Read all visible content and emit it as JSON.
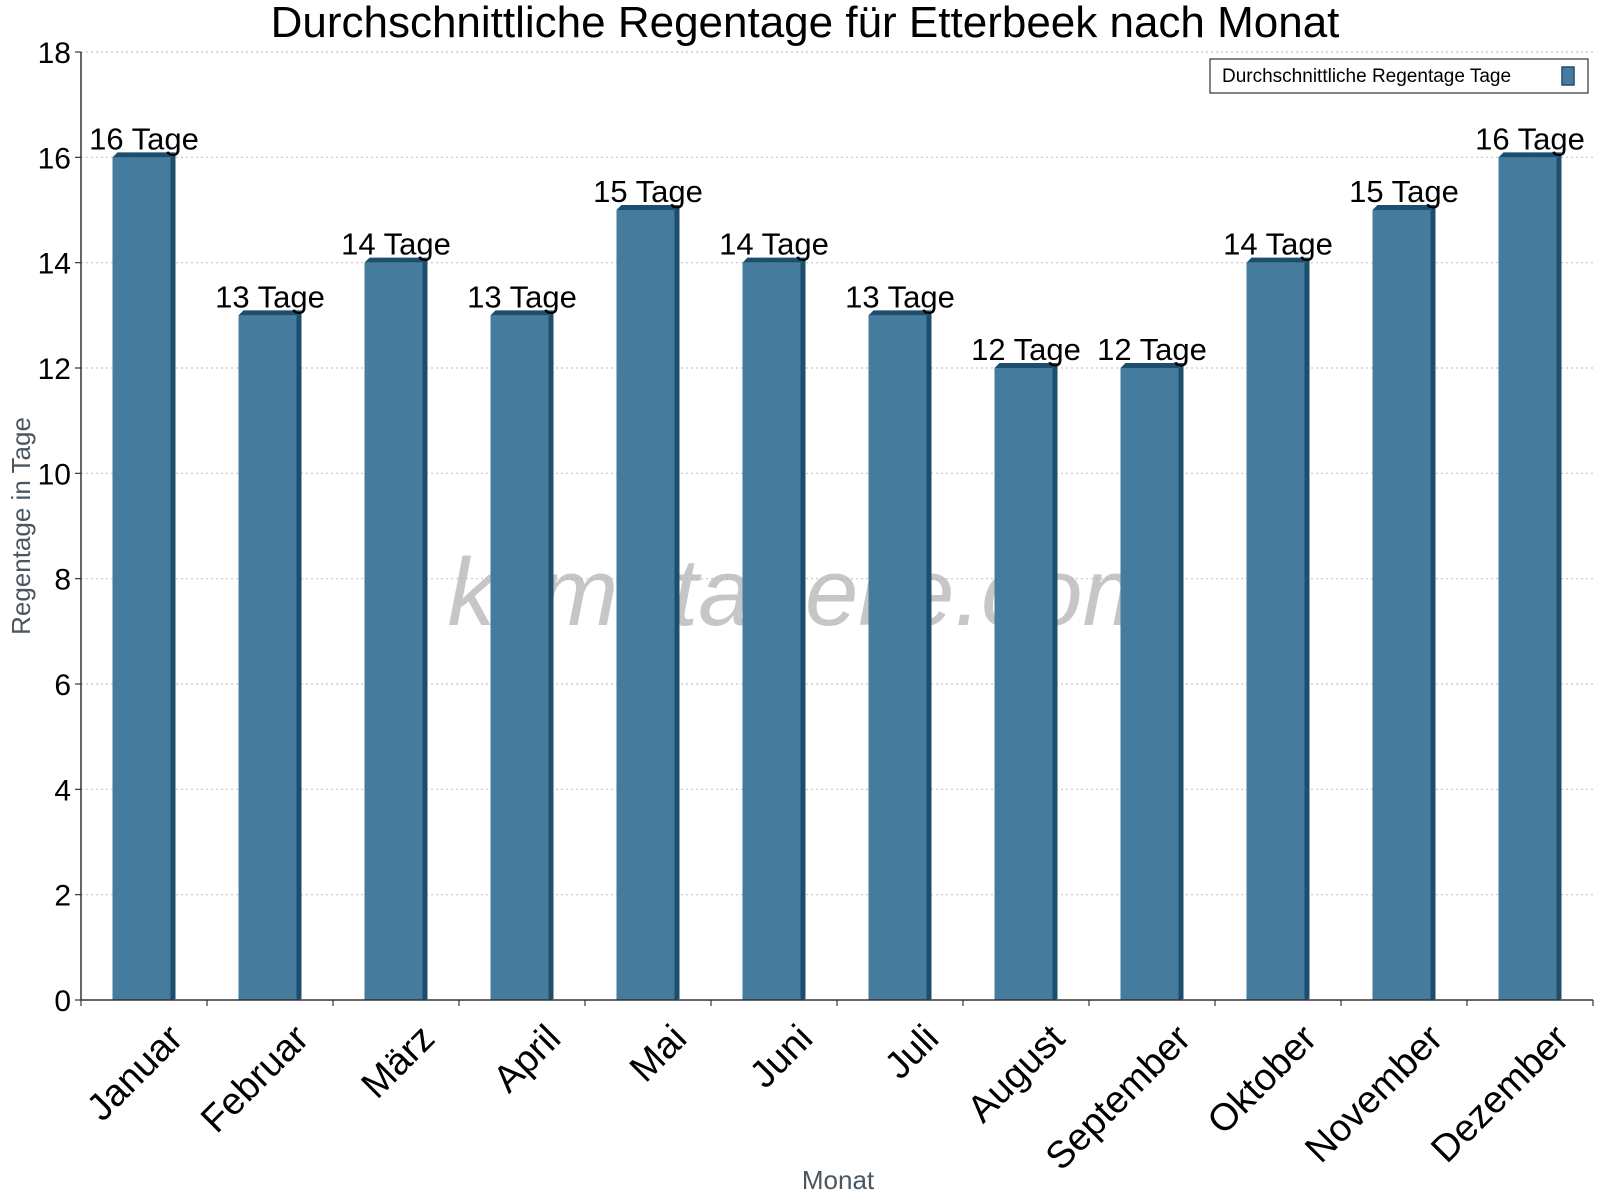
{
  "chart_data": {
    "type": "bar",
    "title": "Durchschnittliche Regentage für Etterbeek nach Monat",
    "xlabel": "Monat",
    "ylabel": "Regentage in Tage",
    "ylim": [
      0,
      18
    ],
    "yticks": [
      "0",
      "2",
      "4",
      "6",
      "8",
      "10",
      "12",
      "14",
      "16",
      "18"
    ],
    "grid": true,
    "legend_position": "top-right",
    "categories": [
      "Januar",
      "Februar",
      "März",
      "April",
      "Mai",
      "Juni",
      "Juli",
      "August",
      "September",
      "Oktober",
      "November",
      "Dezember"
    ],
    "series": [
      {
        "name": "Durchschnittliche Regentage Tage",
        "values": [
          16,
          13,
          14,
          13,
          15,
          14,
          13,
          12,
          12,
          14,
          15,
          16
        ],
        "labels": [
          "16 Tage",
          "13 Tage",
          "14 Tage",
          "13 Tage",
          "15 Tage",
          "14 Tage",
          "13 Tage",
          "12 Tage",
          "12 Tage",
          "14 Tage",
          "15 Tage",
          "16 Tage"
        ],
        "color": "#457b9d",
        "side_color": "#1d4e6e"
      }
    ],
    "watermark": "klimatabelle.com"
  }
}
